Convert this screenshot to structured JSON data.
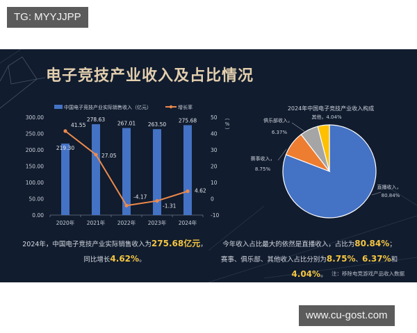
{
  "watermarks": {
    "top": "TG: MYYJJPP",
    "bottom": "www.cu-gost.com"
  },
  "slide": {
    "title": "电子竞技产业收入及占比情况",
    "note": "注：移除电竞游戏产品收入数据"
  },
  "colors": {
    "background": "#111c2e",
    "bar": "#4472c4",
    "line": "#ed8a4c",
    "highlight": "#f4c542",
    "title": "#e3cfae"
  },
  "summary_left": {
    "line1_prefix": "2024年，中国电子竞技产业实际销售收入为",
    "line1_value": "275.68亿元",
    "line1_suffix": "，",
    "line2_prefix": "同比增长",
    "line2_value": "4.62%",
    "line2_suffix": "。"
  },
  "summary_right": {
    "line1_prefix": "今年收入占比最大的依然是直播收入，占比为",
    "line1_value": "80.84%",
    "line1_suffix": "；",
    "line2_prefix": "赛事、俱乐部、其他收入占比分别为",
    "line2_v1": "8.75%",
    "sep1": "、",
    "line2_v2": "6.37%",
    "sep2": "和",
    "line2_v3": "4.04%",
    "line2_suffix": "。"
  },
  "chart_data": [
    {
      "type": "bar",
      "title": "",
      "categories": [
        "2020年",
        "2021年",
        "2022年",
        "2023年",
        "2024年"
      ],
      "series": [
        {
          "name": "中国电子竞技产业实际销售收入（亿元）",
          "type": "bar",
          "axis": "left",
          "values": [
            219.3,
            278.63,
            267.01,
            263.5,
            275.68
          ],
          "labels": [
            "219.30",
            "278.63",
            "267.01",
            "263.50",
            "275.68"
          ]
        },
        {
          "name": "增长率",
          "type": "line",
          "axis": "right",
          "values": [
            41.55,
            27.05,
            -4.17,
            -1.31,
            4.62
          ],
          "labels": [
            "41.55",
            "27.05",
            "-4.17",
            "-1.31",
            "4.62"
          ]
        }
      ],
      "left_axis": {
        "ticks": [
          "300.00",
          "250.00",
          "200.00",
          "150.00",
          "100.00",
          "50.00",
          "0.00"
        ],
        "ylim": [
          0,
          300
        ]
      },
      "right_axis": {
        "label": "（%）",
        "ticks": [
          "50",
          "40",
          "30",
          "20",
          "10",
          "0",
          "-10"
        ],
        "ylim": [
          -10,
          50
        ]
      },
      "legend": {
        "position": "top",
        "entries": [
          "中国电子竞技产业实际销售收入（亿元）",
          "增长率"
        ]
      },
      "grid": false
    },
    {
      "type": "pie",
      "title": "2024年中国电子竞技产业收入构成",
      "categories": [
        "直播收入",
        "赛事收入",
        "俱乐部收入",
        "其他"
      ],
      "values": [
        80.84,
        8.75,
        6.37,
        4.04
      ],
      "labels": [
        "80.84%",
        "8.75%",
        "6.37%",
        "4.04%"
      ],
      "colors": [
        "#4472c4",
        "#ed7d31",
        "#a5a5a5",
        "#ffc000"
      ]
    }
  ]
}
